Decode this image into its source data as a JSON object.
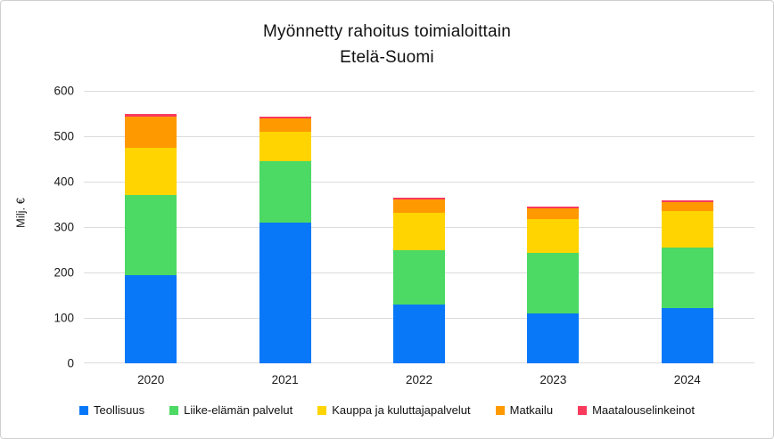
{
  "chart_data": {
    "type": "bar",
    "stacked": true,
    "title": "Myönnetty rahoitus toimialoittain",
    "subtitle": "Etelä-Suomi",
    "ylabel": "Milj. €",
    "xlabel": "",
    "ylim": [
      0,
      600
    ],
    "yticks": [
      0,
      100,
      200,
      300,
      400,
      500,
      600
    ],
    "grid": true,
    "legend_position": "bottom",
    "categories": [
      "2020",
      "2021",
      "2022",
      "2023",
      "2024"
    ],
    "series": [
      {
        "name": "Teollisuus",
        "color": "#0878F8",
        "values": [
          195,
          310,
          130,
          110,
          121
        ]
      },
      {
        "name": "Liike-elämän palvelut",
        "color": "#4CD964",
        "values": [
          175,
          135,
          119,
          134,
          133
        ]
      },
      {
        "name": "Kauppa ja kuluttajapalvelut",
        "color": "#FFD400",
        "values": [
          105,
          65,
          83,
          74,
          81
        ]
      },
      {
        "name": "Matkailu",
        "color": "#FF9900",
        "values": [
          68,
          29,
          29,
          23,
          20
        ]
      },
      {
        "name": "Maatalouselinkeinot",
        "color": "#F93A5C",
        "values": [
          7,
          5,
          4,
          5,
          4
        ]
      }
    ]
  }
}
